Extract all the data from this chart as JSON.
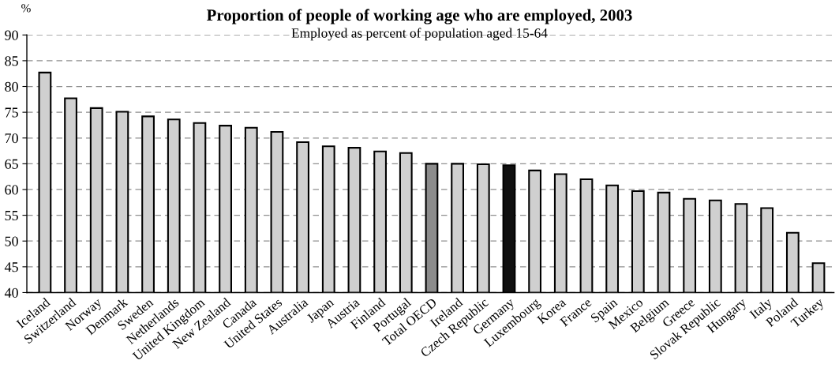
{
  "chart_data": {
    "type": "bar",
    "title": "Proportion of people of working age who are employed, 2003",
    "subtitle": "Employed as percent of population aged 15-64",
    "ylabel": "%",
    "categories": [
      "Iceland",
      "Switzerland",
      "Norway",
      "Denmark",
      "Sweden",
      "Netherlands",
      "United Kingdom",
      "New Zealand",
      "Canada",
      "United States",
      "Australia",
      "Japan",
      "Austria",
      "Finland",
      "Portugal",
      "Total OECD",
      "Ireland",
      "Czech Republic",
      "Germany",
      "Luxembourg",
      "Korea",
      "France",
      "Spain",
      "Mexico",
      "Belgium",
      "Greece",
      "Slovak Republic",
      "Hungary",
      "Italy",
      "Poland",
      "Turkey"
    ],
    "values": [
      82.7,
      77.7,
      75.8,
      75.1,
      74.2,
      73.6,
      72.9,
      72.4,
      72.0,
      71.2,
      69.2,
      68.4,
      68.1,
      67.4,
      67.1,
      65.0,
      65.0,
      64.9,
      64.7,
      63.7,
      63.0,
      62.0,
      60.8,
      59.7,
      59.4,
      58.2,
      57.9,
      57.2,
      56.4,
      51.6,
      45.7
    ],
    "colors": [
      "#d0d0d0",
      "#d0d0d0",
      "#d0d0d0",
      "#d0d0d0",
      "#d0d0d0",
      "#d0d0d0",
      "#d0d0d0",
      "#d0d0d0",
      "#d0d0d0",
      "#d0d0d0",
      "#d0d0d0",
      "#d0d0d0",
      "#d0d0d0",
      "#d0d0d0",
      "#d0d0d0",
      "#8c8c8c",
      "#d0d0d0",
      "#d0d0d0",
      "#101010",
      "#d0d0d0",
      "#d0d0d0",
      "#d0d0d0",
      "#d0d0d0",
      "#d0d0d0",
      "#d0d0d0",
      "#d0d0d0",
      "#d0d0d0",
      "#d0d0d0",
      "#d0d0d0",
      "#d0d0d0",
      "#d0d0d0"
    ],
    "ylim": [
      40,
      90
    ],
    "yticks": [
      40,
      45,
      50,
      55,
      60,
      65,
      70,
      75,
      80,
      85,
      90
    ],
    "grid": "y",
    "legend": false
  }
}
